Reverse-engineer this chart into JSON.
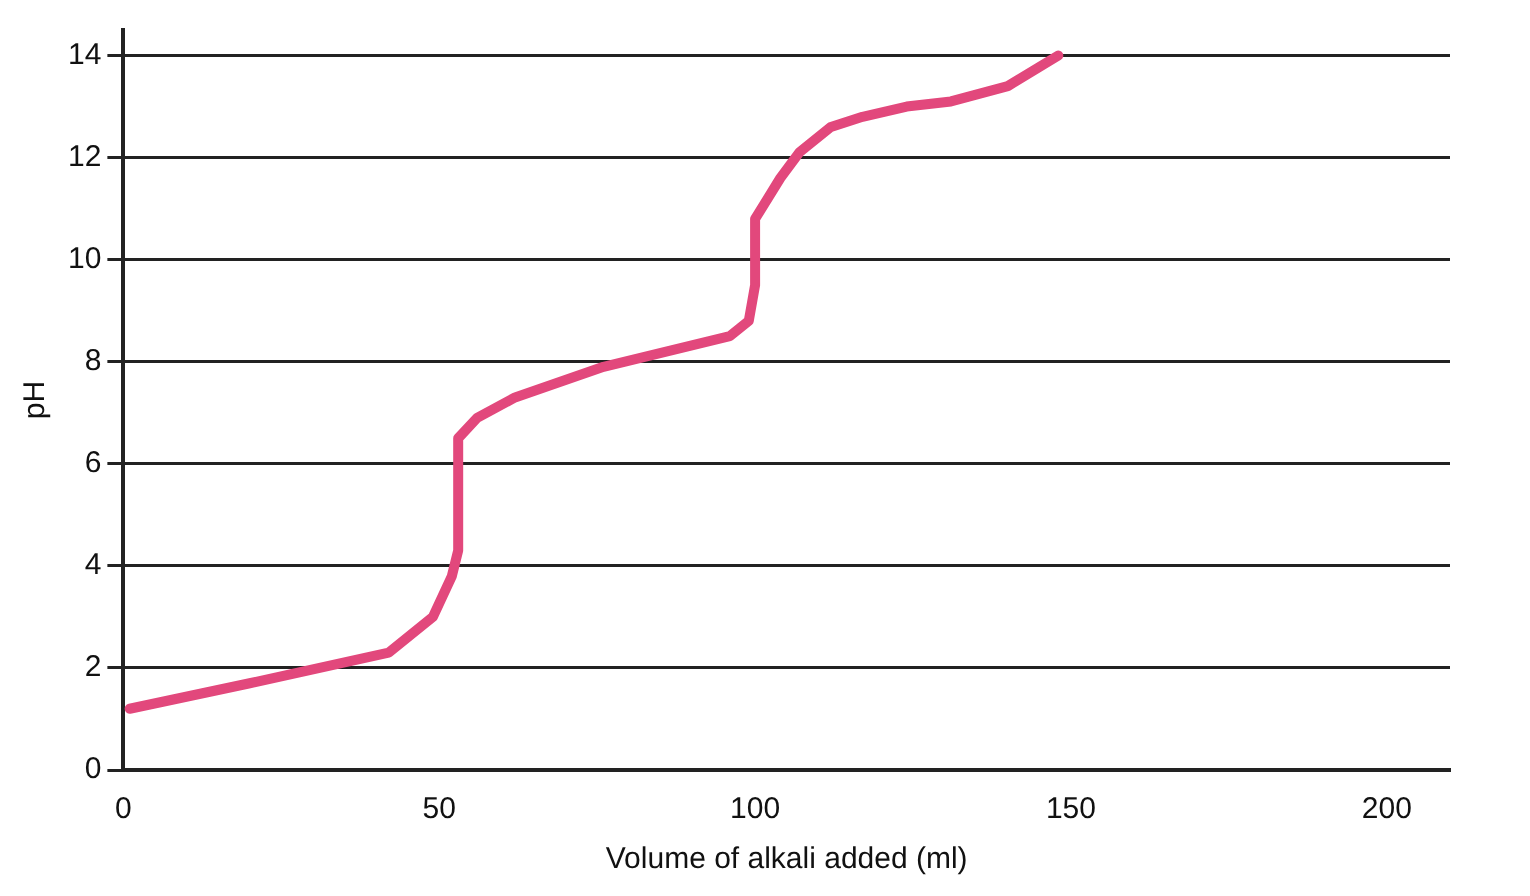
{
  "chart_data": {
    "type": "line",
    "xlabel": "Volume of alkali added (ml)",
    "ylabel": "pH",
    "xlim": [
      0,
      210
    ],
    "xticks": [
      0,
      50,
      100,
      150,
      200
    ],
    "ylim": [
      0,
      14.5
    ],
    "yticks": [
      0,
      2,
      4,
      6,
      8,
      10,
      12,
      14
    ],
    "grid": "y",
    "marker": "none",
    "line_style": "solid",
    "legend": false,
    "series": [
      {
        "color": "#e2487c",
        "x": [
          1,
          20,
          42,
          49,
          52,
          53,
          53,
          56,
          62,
          76,
          96,
          99,
          100,
          100,
          104,
          107,
          112,
          117,
          124,
          131,
          140,
          148
        ],
        "values": [
          1.2,
          1.7,
          2.3,
          3,
          3.8,
          4.3,
          6.5,
          6.9,
          7.3,
          7.9,
          8.5,
          8.8,
          9.5,
          10.8,
          11.6,
          12.1,
          12.6,
          12.8,
          13,
          13.1,
          13.4,
          14
        ]
      }
    ]
  }
}
